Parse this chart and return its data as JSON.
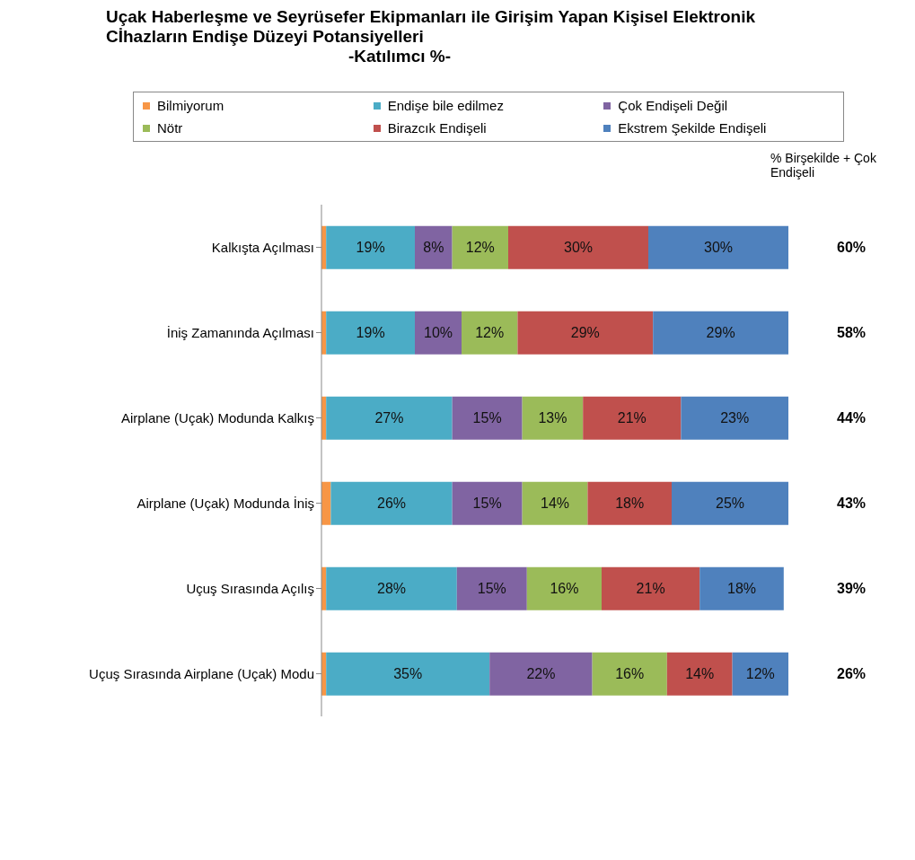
{
  "chart_data": {
    "type": "bar",
    "orientation": "horizontal",
    "stacked": true,
    "title": "Uçak Haberleşme ve Seyrüsefer Ekipmanları ile Girişim Yapan    Kişisel Elektronik Cİhazların Endişe Düzeyi Potansiyelleri",
    "subtitle": "-Katılımcı %-",
    "categories": [
      "Kalkışta Açılması",
      "İniş Zamanında Açılması",
      "Airplane (Uçak) Modunda Kalkış",
      "Airplane (Uçak) Modunda İniş",
      "Uçuş Sırasında Açılış",
      "Uçuş Sırasında Airplane (Uçak) Modu"
    ],
    "series": [
      {
        "name": "Bilmiyorum",
        "color": "#f79646",
        "values": [
          1,
          1,
          1,
          2,
          1,
          1
        ],
        "value_labels": [
          null,
          null,
          null,
          null,
          null,
          null
        ]
      },
      {
        "name": "Endişe bile edilmez",
        "color": "#4bacc6",
        "values": [
          19,
          19,
          27,
          26,
          28,
          35
        ],
        "value_labels": [
          "19%",
          "19%",
          "27%",
          "26%",
          "28%",
          "35%"
        ]
      },
      {
        "name": "Çok Endişeli Değil",
        "color": "#8064a2",
        "values": [
          8,
          10,
          15,
          15,
          15,
          22
        ],
        "value_labels": [
          "8%",
          "10%",
          "15%",
          "15%",
          "15%",
          "22%"
        ]
      },
      {
        "name": "Nötr",
        "color": "#9bbb59",
        "values": [
          12,
          12,
          13,
          14,
          16,
          16
        ],
        "value_labels": [
          "12%",
          "12%",
          "13%",
          "14%",
          "16%",
          "16%"
        ]
      },
      {
        "name": "Birazcık Endişeli",
        "color": "#c0504d",
        "values": [
          30,
          29,
          21,
          18,
          21,
          14
        ],
        "value_labels": [
          "30%",
          "29%",
          "21%",
          "18%",
          "21%",
          "14%"
        ]
      },
      {
        "name": "Ekstrem Şekilde Endişeli",
        "color": "#4f81bd",
        "values": [
          30,
          29,
          23,
          25,
          18,
          12
        ],
        "value_labels": [
          "30%",
          "29%",
          "23%",
          "25%",
          "18%",
          "12%"
        ]
      }
    ],
    "annotations": [
      "% Birşekilde + Çok Endişeli",
      "60%",
      "58%",
      "44%",
      "43%",
      "39%",
      "26%"
    ],
    "legend": "top",
    "grid": false
  }
}
